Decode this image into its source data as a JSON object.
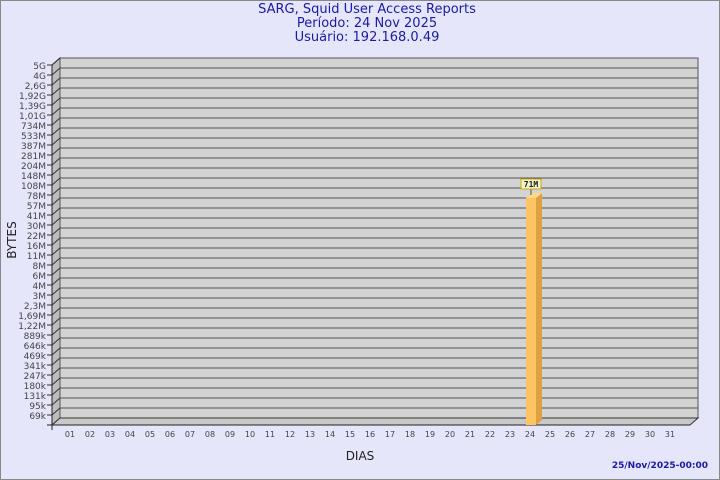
{
  "chart_data": {
    "type": "bar",
    "title": "SARG, Squid User Access Reports",
    "subtitle_period": "Período: 24 Nov 2025",
    "subtitle_user": "Usuário: 192.168.0.49",
    "xlabel": "DIAS",
    "ylabel": "BYTES",
    "y_scale": "log",
    "grid": true,
    "y_ticks": [
      "5G",
      "4G",
      "2,6G",
      "1,92G",
      "1,39G",
      "1,01G",
      "734M",
      "533M",
      "387M",
      "281M",
      "204M",
      "148M",
      "108M",
      "78M",
      "57M",
      "41M",
      "30M",
      "22M",
      "16M",
      "11M",
      "8M",
      "6M",
      "4M",
      "3M",
      "2,3M",
      "1,69M",
      "1,22M",
      "889k",
      "646k",
      "469k",
      "341k",
      "247k",
      "180k",
      "131k",
      "95k",
      "69k"
    ],
    "categories": [
      "01",
      "02",
      "03",
      "04",
      "05",
      "06",
      "07",
      "08",
      "09",
      "10",
      "11",
      "12",
      "13",
      "14",
      "15",
      "16",
      "17",
      "18",
      "19",
      "20",
      "21",
      "22",
      "23",
      "24",
      "25",
      "26",
      "27",
      "28",
      "29",
      "30",
      "31"
    ],
    "bars": [
      {
        "day": "24",
        "value_bytes": 71000000,
        "label": "71M"
      }
    ],
    "colors": {
      "bar_front": "#fcc462",
      "bar_side": "#e0a040",
      "bar_top": "#fdd88a",
      "wall": "#d3d3d3",
      "title": "#1a1aa6"
    }
  },
  "footer": "25/Nov/2025-00:00"
}
